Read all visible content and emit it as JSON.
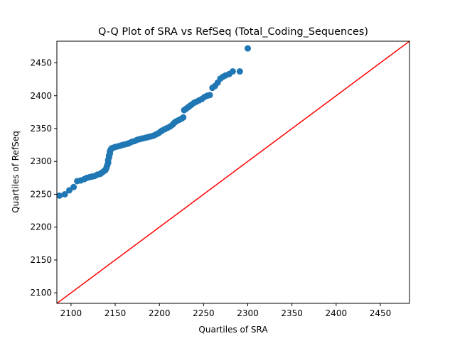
{
  "chart_data": {
    "type": "scatter",
    "title": "Q-Q Plot of SRA vs RefSeq (Total_Coding_Sequences)",
    "xlabel": "Quartiles of SRA",
    "ylabel": "Quartiles of RefSeq",
    "xlim": [
      2084,
      2483
    ],
    "ylim": [
      2084,
      2483
    ],
    "xticks": [
      2100,
      2150,
      2200,
      2250,
      2300,
      2350,
      2400,
      2450
    ],
    "yticks": [
      2100,
      2150,
      2200,
      2250,
      2300,
      2350,
      2400,
      2450
    ],
    "grid": false,
    "legend": "none",
    "marker_color": "#1f77b4",
    "reference_line": {
      "color": "#ff0000",
      "from": [
        2084,
        2084
      ],
      "to": [
        2483,
        2483
      ]
    },
    "points": [
      [
        2087,
        2248
      ],
      [
        2093,
        2250
      ],
      [
        2098,
        2256
      ],
      [
        2103,
        2261
      ],
      [
        2107,
        2270
      ],
      [
        2111,
        2271
      ],
      [
        2115,
        2273
      ],
      [
        2118,
        2275
      ],
      [
        2121,
        2276
      ],
      [
        2124,
        2277
      ],
      [
        2127,
        2278
      ],
      [
        2130,
        2280
      ],
      [
        2133,
        2281
      ],
      [
        2135,
        2283
      ],
      [
        2137,
        2285
      ],
      [
        2139,
        2287
      ],
      [
        2140,
        2290
      ],
      [
        2141,
        2294
      ],
      [
        2142,
        2298
      ],
      [
        2142,
        2302
      ],
      [
        2143,
        2306
      ],
      [
        2143,
        2309
      ],
      [
        2144,
        2312
      ],
      [
        2144,
        2315
      ],
      [
        2145,
        2318
      ],
      [
        2146,
        2320
      ],
      [
        2148,
        2321
      ],
      [
        2150,
        2322
      ],
      [
        2153,
        2323
      ],
      [
        2156,
        2324
      ],
      [
        2158,
        2325
      ],
      [
        2161,
        2326
      ],
      [
        2164,
        2327
      ],
      [
        2166,
        2328
      ],
      [
        2169,
        2330
      ],
      [
        2172,
        2331
      ],
      [
        2175,
        2333
      ],
      [
        2178,
        2334
      ],
      [
        2181,
        2335
      ],
      [
        2184,
        2336
      ],
      [
        2187,
        2337
      ],
      [
        2190,
        2338
      ],
      [
        2193,
        2339
      ],
      [
        2196,
        2341
      ],
      [
        2199,
        2343
      ],
      [
        2201,
        2345
      ],
      [
        2203,
        2347
      ],
      [
        2206,
        2349
      ],
      [
        2209,
        2351
      ],
      [
        2212,
        2353
      ],
      [
        2215,
        2356
      ],
      [
        2217,
        2359
      ],
      [
        2219,
        2361
      ],
      [
        2222,
        2363
      ],
      [
        2225,
        2365
      ],
      [
        2227,
        2367
      ],
      [
        2228,
        2378
      ],
      [
        2230,
        2380
      ],
      [
        2232,
        2382
      ],
      [
        2234,
        2384
      ],
      [
        2236,
        2386
      ],
      [
        2239,
        2389
      ],
      [
        2242,
        2391
      ],
      [
        2245,
        2393
      ],
      [
        2248,
        2395
      ],
      [
        2251,
        2398
      ],
      [
        2254,
        2400
      ],
      [
        2257,
        2401
      ],
      [
        2260,
        2412
      ],
      [
        2263,
        2415
      ],
      [
        2266,
        2420
      ],
      [
        2269,
        2426
      ],
      [
        2272,
        2429
      ],
      [
        2275,
        2431
      ],
      [
        2279,
        2433
      ],
      [
        2283,
        2437
      ],
      [
        2291,
        2437
      ],
      [
        2300,
        2472
      ]
    ]
  }
}
